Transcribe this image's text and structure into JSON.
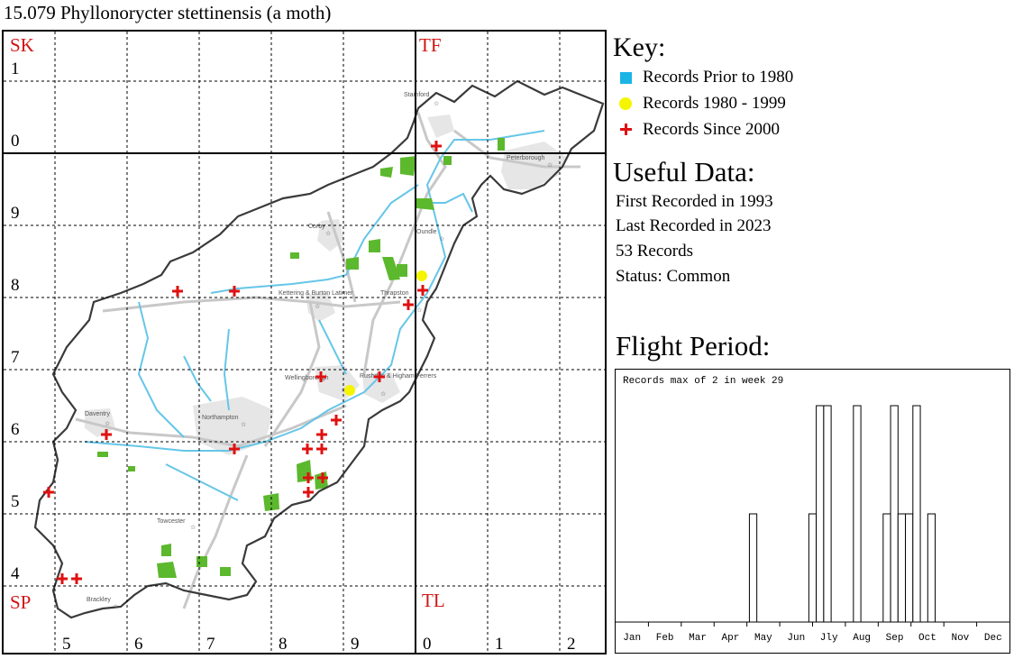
{
  "title": "15.079 Phyllonorycter stettinensis (a moth)",
  "map": {
    "squares": {
      "sk": "SK",
      "tf": "TF",
      "sp": "SP",
      "tl": "TL"
    },
    "left_numbers": [
      "1",
      "0",
      "9",
      "8",
      "7",
      "6",
      "5",
      "4"
    ],
    "bottom_numbers": [
      "5",
      "6",
      "7",
      "8",
      "9",
      "0",
      "1",
      "2"
    ],
    "places": [
      "Stamford",
      "Peterborough",
      "Corby",
      "Oundle",
      "Kettering & Burton Latimer",
      "Thrapston",
      "Rushden & Higham Ferrers",
      "Wellingborough",
      "Northampton",
      "Daventry",
      "Towcester",
      "Brackley"
    ],
    "symbol_colors": {
      "prior_1980": "#1ab4e6",
      "r1980_1999": "#f5f500",
      "since_2000": "#e01010",
      "woodland": "#5cb82d",
      "river": "#66c6e8",
      "urban": "#e6e6e6",
      "road": "#c8c8c8"
    },
    "records_since_2000": 22,
    "records_1980_1999": 2
  },
  "key": {
    "title": "Key:",
    "prior": "Records Prior to 1980",
    "mid": "Records 1980 - 1999",
    "since": "Records Since 2000"
  },
  "useful": {
    "title": "Useful Data:",
    "first": "First Recorded in 1993",
    "last": "Last Recorded in 2023",
    "count": "53 Records",
    "status": "Status: Common"
  },
  "flight": {
    "title": "Flight Period:",
    "note": "Records max of 2 in week 29",
    "months": [
      "Jan",
      "Feb",
      "Mar",
      "Apr",
      "May",
      "Jun",
      "Jly",
      "Aug",
      "Sep",
      "Oct",
      "Nov",
      "Dec"
    ]
  },
  "chart_data": {
    "type": "bar",
    "title": "Records max of 2 in week 29",
    "xlabel": "",
    "ylabel": "",
    "ylim": [
      0,
      2
    ],
    "grid": false,
    "x_unit": "week",
    "weeks": [
      19,
      27,
      28,
      29,
      33,
      37,
      38,
      39,
      40,
      41,
      43
    ],
    "values": [
      1,
      1,
      2,
      2,
      2,
      1,
      2,
      1,
      1,
      2,
      1
    ]
  }
}
